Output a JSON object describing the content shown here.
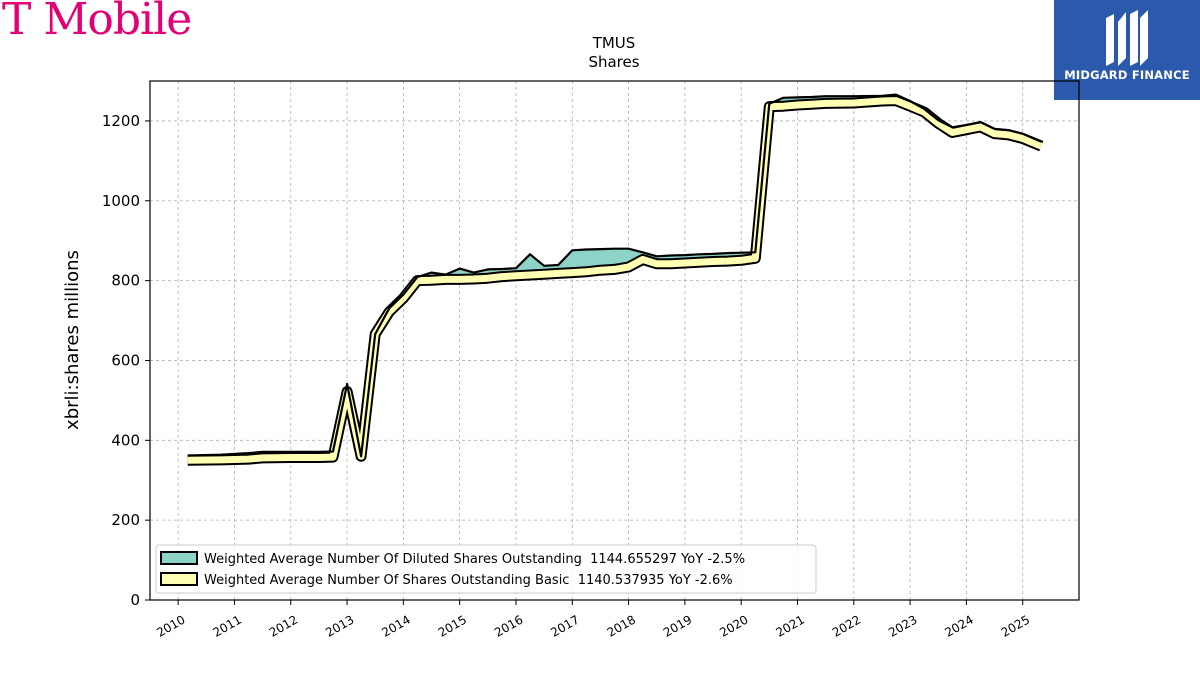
{
  "colors": {
    "brand_magenta": "#e20074",
    "midgard_blue": "#2b5aad",
    "diluted_fill": "#8dd3c7",
    "basic_fill": "#ffffb3",
    "outline": "#000000",
    "grid": "#b0b0b0"
  },
  "logos": {
    "left_text": "T Mobile",
    "right_text": "MIDGARD FINANCE"
  },
  "chart_data": {
    "type": "line",
    "title": "TMUS",
    "subtitle": "Shares",
    "xlabel": "",
    "ylabel": "xbrli:shares millions",
    "ylim": [
      0,
      1300
    ],
    "yticks": [
      0,
      200,
      400,
      600,
      800,
      1000,
      1200
    ],
    "xlim": [
      2009.5,
      2026.0
    ],
    "xticks": [
      "2010",
      "2011",
      "2012",
      "2013",
      "2014",
      "2015",
      "2016",
      "2017",
      "2018",
      "2019",
      "2020",
      "2021",
      "2022",
      "2023",
      "2024",
      "2025"
    ],
    "grid": true,
    "legend_position": "lower-left",
    "series": [
      {
        "name": "Weighted Average Number Of Diluted Shares Outstanding  1144.655297 YoY -2.5%",
        "color": "#8dd3c7",
        "points": [
          [
            2010.17,
            362
          ],
          [
            2010.75,
            364
          ],
          [
            2011.25,
            368
          ],
          [
            2011.5,
            371
          ],
          [
            2012.0,
            371
          ],
          [
            2012.5,
            371
          ],
          [
            2012.75,
            372
          ],
          [
            2013.0,
            541
          ],
          [
            2013.25,
            360
          ],
          [
            2013.5,
            666
          ],
          [
            2013.75,
            731
          ],
          [
            2014.0,
            765
          ],
          [
            2014.25,
            809
          ],
          [
            2014.5,
            820
          ],
          [
            2014.75,
            815
          ],
          [
            2015.0,
            830
          ],
          [
            2015.25,
            820
          ],
          [
            2015.5,
            828
          ],
          [
            2015.75,
            829
          ],
          [
            2016.0,
            831
          ],
          [
            2016.25,
            866
          ],
          [
            2016.5,
            837
          ],
          [
            2016.75,
            839
          ],
          [
            2017.0,
            876
          ],
          [
            2017.25,
            878
          ],
          [
            2017.5,
            879
          ],
          [
            2017.75,
            880
          ],
          [
            2018.0,
            880
          ],
          [
            2018.25,
            871
          ],
          [
            2018.5,
            861
          ],
          [
            2018.75,
            863
          ],
          [
            2019.0,
            864
          ],
          [
            2019.25,
            866
          ],
          [
            2019.5,
            867
          ],
          [
            2019.75,
            869
          ],
          [
            2020.0,
            870
          ],
          [
            2020.25,
            871
          ],
          [
            2020.5,
            1243
          ],
          [
            2020.75,
            1258
          ],
          [
            2021.0,
            1259
          ],
          [
            2021.25,
            1260
          ],
          [
            2021.5,
            1262
          ],
          [
            2022.0,
            1262
          ],
          [
            2022.5,
            1263
          ],
          [
            2022.75,
            1266
          ],
          [
            2023.0,
            1250
          ],
          [
            2023.25,
            1230
          ],
          [
            2023.5,
            1202
          ],
          [
            2023.75,
            1184
          ],
          [
            2024.0,
            1190
          ],
          [
            2024.25,
            1197
          ],
          [
            2024.5,
            1180
          ],
          [
            2024.75,
            1177
          ],
          [
            2025.0,
            1168
          ],
          [
            2025.33,
            1148
          ]
        ]
      },
      {
        "name": "Weighted Average Number Of Shares Outstanding Basic  1140.537935 YoY -2.6%",
        "color": "#ffffb3",
        "points": [
          [
            2010.17,
            350
          ],
          [
            2010.75,
            351
          ],
          [
            2011.25,
            353
          ],
          [
            2011.5,
            356
          ],
          [
            2012.0,
            357
          ],
          [
            2012.5,
            357
          ],
          [
            2012.75,
            358
          ],
          [
            2013.0,
            522
          ],
          [
            2013.25,
            360
          ],
          [
            2013.5,
            666
          ],
          [
            2013.75,
            722
          ],
          [
            2014.0,
            756
          ],
          [
            2014.25,
            800
          ],
          [
            2014.5,
            801
          ],
          [
            2014.75,
            803
          ],
          [
            2015.0,
            803
          ],
          [
            2015.25,
            804
          ],
          [
            2015.5,
            806
          ],
          [
            2015.75,
            810
          ],
          [
            2016.0,
            812
          ],
          [
            2016.25,
            814
          ],
          [
            2016.5,
            816
          ],
          [
            2016.75,
            818
          ],
          [
            2017.0,
            820
          ],
          [
            2017.25,
            822
          ],
          [
            2017.5,
            826
          ],
          [
            2017.75,
            828
          ],
          [
            2018.0,
            834
          ],
          [
            2018.25,
            853
          ],
          [
            2018.5,
            842
          ],
          [
            2018.75,
            842
          ],
          [
            2019.0,
            844
          ],
          [
            2019.25,
            846
          ],
          [
            2019.5,
            848
          ],
          [
            2019.75,
            849
          ],
          [
            2020.0,
            851
          ],
          [
            2020.25,
            856
          ],
          [
            2020.5,
            1236
          ],
          [
            2020.75,
            1237
          ],
          [
            2021.0,
            1240
          ],
          [
            2021.25,
            1242
          ],
          [
            2021.5,
            1244
          ],
          [
            2022.0,
            1245
          ],
          [
            2022.5,
            1250
          ],
          [
            2022.75,
            1251
          ],
          [
            2023.0,
            1237
          ],
          [
            2023.25,
            1222
          ],
          [
            2023.5,
            1194
          ],
          [
            2023.75,
            1171
          ],
          [
            2024.0,
            1178
          ],
          [
            2024.25,
            1185
          ],
          [
            2024.5,
            1168
          ],
          [
            2024.75,
            1165
          ],
          [
            2025.0,
            1156
          ],
          [
            2025.33,
            1137
          ]
        ]
      }
    ]
  }
}
